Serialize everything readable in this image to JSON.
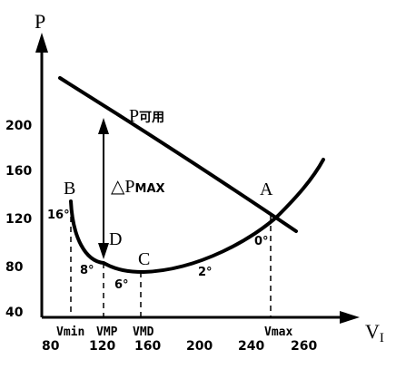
{
  "axes": {
    "y_label": "P",
    "x_label_main": "V",
    "x_label_sub": "I"
  },
  "y_ticks": [
    {
      "value": 40,
      "label": "40"
    },
    {
      "value": 80,
      "label": "80"
    },
    {
      "value": 120,
      "label": "120"
    },
    {
      "value": 160,
      "label": "160"
    },
    {
      "value": 200,
      "label": "200"
    }
  ],
  "x_ticks": [
    {
      "value": 80,
      "label": "80"
    },
    {
      "value": 120,
      "label": "120"
    },
    {
      "value": 160,
      "label": "160"
    },
    {
      "value": 200,
      "label": "200"
    },
    {
      "value": 240,
      "label": "240"
    },
    {
      "value": 260,
      "label": "260"
    }
  ],
  "voltage_markers": {
    "vmin": "Vmin",
    "vmp": "VMP",
    "vmd": "VMD",
    "vmax": "Vmax"
  },
  "curves": {
    "available_label_main": "P",
    "available_label_sub": "可用"
  },
  "points": {
    "a": "A",
    "b": "B",
    "c": "C",
    "d": "D"
  },
  "delta": {
    "symbol": "△P",
    "sub": "MAX"
  },
  "angles": {
    "b": "16°",
    "vmp": "8°",
    "c": "6°",
    "mid": "2°",
    "a": "0°"
  }
}
